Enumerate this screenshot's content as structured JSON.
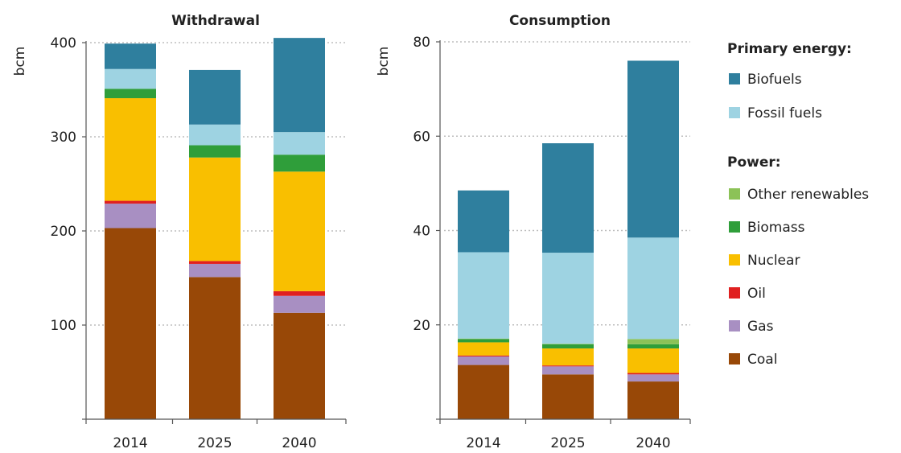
{
  "chart_data": [
    {
      "type": "bar",
      "stacked": true,
      "title": "Withdrawal",
      "ylabel": "bcm",
      "xlabel": "",
      "categories": [
        "2014",
        "2025",
        "2040"
      ],
      "ylim": [
        0,
        400
      ],
      "yticks": [
        100,
        200,
        300,
        400
      ],
      "grid": true,
      "series": [
        {
          "name": "Coal",
          "color": "#984807",
          "values": [
            203,
            151,
            113
          ]
        },
        {
          "name": "Gas",
          "color": "#a88fc2",
          "values": [
            26,
            14,
            18
          ]
        },
        {
          "name": "Oil",
          "color": "#e02020",
          "values": [
            3,
            3,
            5
          ]
        },
        {
          "name": "Nuclear",
          "color": "#f9bf00",
          "values": [
            109,
            110,
            127
          ]
        },
        {
          "name": "Biomass",
          "color": "#2f9e3a",
          "values": [
            10,
            13,
            18
          ]
        },
        {
          "name": "Other renewables",
          "color": "#8cc257",
          "values": [
            0,
            0,
            0
          ]
        },
        {
          "name": "Fossil fuels",
          "color": "#9ed3e2",
          "values": [
            21,
            22,
            24
          ]
        },
        {
          "name": "Biofuels",
          "color": "#2f7f9e",
          "values": [
            27,
            58,
            100
          ]
        }
      ]
    },
    {
      "type": "bar",
      "stacked": true,
      "title": "Consumption",
      "ylabel": "bcm",
      "xlabel": "",
      "categories": [
        "2014",
        "2025",
        "2040"
      ],
      "ylim": [
        0,
        80
      ],
      "yticks": [
        20,
        40,
        60,
        80
      ],
      "grid": true,
      "series": [
        {
          "name": "Coal",
          "color": "#984807",
          "values": [
            11.5,
            9.5,
            8.0
          ]
        },
        {
          "name": "Gas",
          "color": "#a88fc2",
          "values": [
            1.8,
            1.7,
            1.5
          ]
        },
        {
          "name": "Oil",
          "color": "#e02020",
          "values": [
            0.2,
            0.2,
            0.3
          ]
        },
        {
          "name": "Nuclear",
          "color": "#f9bf00",
          "values": [
            2.8,
            3.6,
            5.2
          ]
        },
        {
          "name": "Biomass",
          "color": "#2f9e3a",
          "values": [
            0.7,
            0.9,
            0.9
          ]
        },
        {
          "name": "Other renewables",
          "color": "#8cc257",
          "values": [
            0.1,
            0.1,
            1.1
          ]
        },
        {
          "name": "Fossil fuels",
          "color": "#9ed3e2",
          "values": [
            18.3,
            19.3,
            21.5
          ]
        },
        {
          "name": "Biofuels",
          "color": "#2f7f9e",
          "values": [
            13.1,
            23.2,
            37.5
          ]
        }
      ]
    }
  ],
  "legend": {
    "primary_header": "Primary energy:",
    "power_header": "Power:",
    "items": [
      {
        "label": "Biofuels",
        "color": "#2f7f9e",
        "group": "primary"
      },
      {
        "label": "Fossil fuels",
        "color": "#9ed3e2",
        "group": "primary"
      },
      {
        "label": "Other renewables",
        "color": "#8cc257",
        "group": "power"
      },
      {
        "label": "Biomass",
        "color": "#2f9e3a",
        "group": "power"
      },
      {
        "label": "Nuclear",
        "color": "#f9bf00",
        "group": "power"
      },
      {
        "label": "Oil",
        "color": "#e02020",
        "group": "power"
      },
      {
        "label": "Gas",
        "color": "#a88fc2",
        "group": "power"
      },
      {
        "label": "Coal",
        "color": "#984807",
        "group": "power"
      }
    ]
  }
}
